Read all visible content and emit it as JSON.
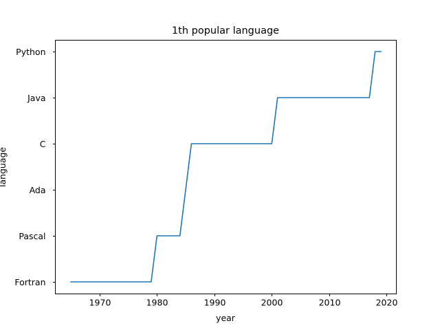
{
  "chart_data": {
    "type": "line",
    "title": "1th popular language",
    "xlabel": "year",
    "ylabel": "language",
    "xlim": [
      1962.3,
      2021.7
    ],
    "x_ticks": [
      1970,
      1980,
      1990,
      2000,
      2010,
      2020
    ],
    "y_categories": [
      "Fortran",
      "Pascal",
      "Ada",
      "C",
      "Java",
      "Python"
    ],
    "grid": false,
    "legend": "none",
    "series": [
      {
        "color": "#1f77b4",
        "points": [
          {
            "x": 1965,
            "y": "Fortran"
          },
          {
            "x": 1979,
            "y": "Fortran"
          },
          {
            "x": 1980,
            "y": "Pascal"
          },
          {
            "x": 1984,
            "y": "Pascal"
          },
          {
            "x": 1986,
            "y": "C"
          },
          {
            "x": 2000,
            "y": "C"
          },
          {
            "x": 2001,
            "y": "Java"
          },
          {
            "x": 2017,
            "y": "Java"
          },
          {
            "x": 2018,
            "y": "Python"
          },
          {
            "x": 2019,
            "y": "Python"
          }
        ]
      }
    ]
  }
}
